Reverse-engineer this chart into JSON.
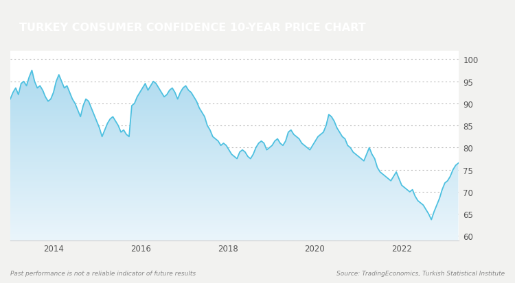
{
  "title": "TURKEY CONSUMER CONFIDENCE 10-YEAR PRICE CHART",
  "title_bg_color": "#A0634A",
  "title_text_color": "#FFFFFF",
  "outer_bg_color": "#F2F2F0",
  "chart_bg_color": "#FFFFFF",
  "line_color": "#4DC0E0",
  "fill_color_top": "#A8D8EE",
  "fill_color_bottom": "#E8F5FB",
  "grid_color": "#BBBBBB",
  "footer_left": "Past performance is not a reliable indicator of future results",
  "footer_right": "Source: TradingEconomics, Turkish Statistical Institute",
  "footer_color": "#888888",
  "yticks": [
    60,
    65,
    70,
    75,
    80,
    85,
    90,
    95,
    100
  ],
  "ylim": [
    59.0,
    102.0
  ],
  "xtick_positions": [
    2014,
    2016,
    2018,
    2020,
    2022
  ],
  "xtick_labels": [
    "2014",
    "2016",
    "2018",
    "2020",
    "2022"
  ],
  "values": [
    91.0,
    92.5,
    93.5,
    92.0,
    94.5,
    95.0,
    94.0,
    96.0,
    97.5,
    95.0,
    93.5,
    94.0,
    93.0,
    91.5,
    90.5,
    91.0,
    92.5,
    95.0,
    96.5,
    95.0,
    93.5,
    94.0,
    92.5,
    91.0,
    90.0,
    88.5,
    87.0,
    89.5,
    91.0,
    90.5,
    89.0,
    87.5,
    86.0,
    84.5,
    82.5,
    84.0,
    85.5,
    86.5,
    87.0,
    86.0,
    85.0,
    83.5,
    84.0,
    83.0,
    82.5,
    89.5,
    90.0,
    91.5,
    92.5,
    93.5,
    94.5,
    93.0,
    94.0,
    95.0,
    94.5,
    93.5,
    92.5,
    91.5,
    92.0,
    93.0,
    93.5,
    92.5,
    91.0,
    92.5,
    93.5,
    94.0,
    93.0,
    92.5,
    91.5,
    90.5,
    89.0,
    88.0,
    87.0,
    85.0,
    84.0,
    82.5,
    82.0,
    81.5,
    80.5,
    81.0,
    80.5,
    79.5,
    78.5,
    78.0,
    77.5,
    79.0,
    79.5,
    79.0,
    78.0,
    77.5,
    78.5,
    80.0,
    81.0,
    81.5,
    81.0,
    79.5,
    80.0,
    80.5,
    81.5,
    82.0,
    81.0,
    80.5,
    81.5,
    83.5,
    84.0,
    83.0,
    82.5,
    82.0,
    81.0,
    80.5,
    80.0,
    79.5,
    80.5,
    81.5,
    82.5,
    83.0,
    83.5,
    85.0,
    87.5,
    87.0,
    86.0,
    84.5,
    83.5,
    82.5,
    82.0,
    80.5,
    80.0,
    79.0,
    78.5,
    78.0,
    77.5,
    77.0,
    78.5,
    80.0,
    78.5,
    77.5,
    75.5,
    74.5,
    74.0,
    73.5,
    73.0,
    72.5,
    73.5,
    74.5,
    73.0,
    71.5,
    71.0,
    70.5,
    70.0,
    70.5,
    69.0,
    68.0,
    67.5,
    67.0,
    66.0,
    65.0,
    63.7,
    65.5,
    67.0,
    68.5,
    70.5,
    72.0,
    72.5,
    73.5,
    75.0,
    76.0,
    76.5
  ],
  "x_start_year": 2013.0,
  "x_end_year": 2023.3
}
